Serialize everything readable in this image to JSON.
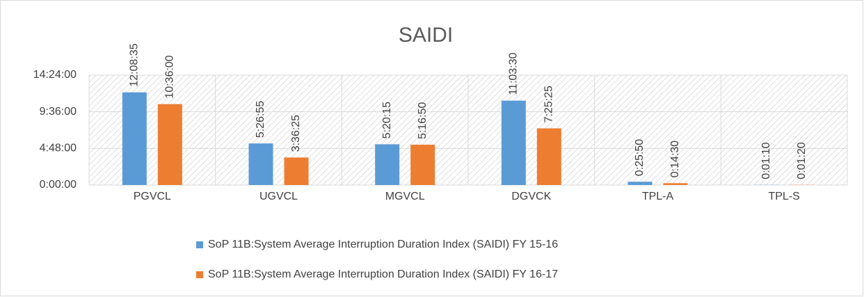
{
  "chart_data": {
    "type": "bar",
    "title": "SAIDI",
    "categories": [
      "PGVCL",
      "UGVCL",
      "MGVCL",
      "DGVCK",
      "TPL-A",
      "TPL-S"
    ],
    "series": [
      {
        "name": "SoP 11B:System Average Interruption Duration Index (SAIDI) FY 15-16",
        "color": "#5b9bd5",
        "values": [
          43715,
          19615,
          19215,
          39810,
          1550,
          70
        ],
        "value_labels": [
          "12:08:35",
          "5:26:55",
          "5:20:15",
          "11:03:30",
          "0:25:50",
          "0:01:10"
        ]
      },
      {
        "name": "SoP 11B:System Average Interruption Duration Index (SAIDI) FY 16-17",
        "color": "#ed7d31",
        "values": [
          38160,
          12985,
          19010,
          26725,
          870,
          80
        ],
        "value_labels": [
          "10:36:00",
          "3:36:25",
          "5:16:50",
          "7:25:25",
          "0:14:30",
          "0:01:20"
        ]
      }
    ],
    "ylim": [
      0,
      51840
    ],
    "yticks": [
      {
        "value": 0,
        "label": "0:00:00"
      },
      {
        "value": 17280,
        "label": "4:48:00"
      },
      {
        "value": 34560,
        "label": "9:36:00"
      },
      {
        "value": 51840,
        "label": "14:24:00"
      }
    ],
    "grid": true
  }
}
